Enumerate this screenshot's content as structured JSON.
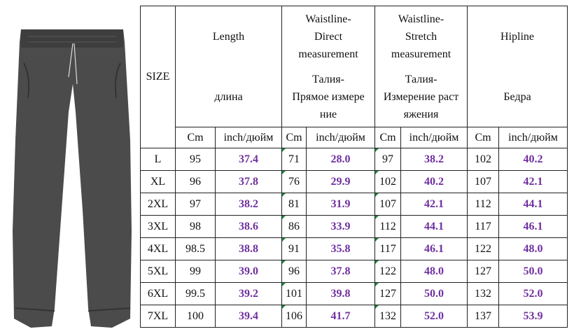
{
  "table": {
    "size_header": "SIZE",
    "groups": [
      {
        "en": [
          "Length"
        ],
        "ru": [
          "длина"
        ]
      },
      {
        "en": [
          "Waistline-",
          "Direct",
          "measurement"
        ],
        "ru": [
          "Талия-",
          "Прямое измере",
          "ние"
        ]
      },
      {
        "en": [
          "Waistline-",
          "Stretch",
          "measurement"
        ],
        "ru": [
          "Талия-",
          "Измерение раст",
          "яжения"
        ]
      },
      {
        "en": [
          "Hipline"
        ],
        "ru": [
          "Бедра"
        ]
      }
    ],
    "subheaders": [
      "Cm",
      "inch/дюйм",
      "Cm",
      "inch/дюйм",
      "Cm",
      "inch/дюйм",
      "Cm",
      "inch/дюйм"
    ],
    "rows": [
      [
        "L",
        "95",
        "37.4",
        "71",
        "28.0",
        "97",
        "38.2",
        "102",
        "40.2"
      ],
      [
        "XL",
        "96",
        "37.8",
        "76",
        "29.9",
        "102",
        "40.2",
        "107",
        "42.1"
      ],
      [
        "2XL",
        "97",
        "38.2",
        "81",
        "31.9",
        "107",
        "42.1",
        "112",
        "44.1"
      ],
      [
        "3XL",
        "98",
        "38.6",
        "86",
        "33.9",
        "112",
        "44.1",
        "117",
        "46.1"
      ],
      [
        "4XL",
        "98.5",
        "38.8",
        "91",
        "35.8",
        "117",
        "46.1",
        "122",
        "48.0"
      ],
      [
        "5XL",
        "99",
        "39.0",
        "96",
        "37.8",
        "122",
        "48.0",
        "127",
        "50.0"
      ],
      [
        "6XL",
        "99.5",
        "39.2",
        "101",
        "39.8",
        "127",
        "50.0",
        "132",
        "52.0"
      ],
      [
        "7XL",
        "100",
        "39.4",
        "106",
        "41.7",
        "132",
        "52.0",
        "137",
        "53.9"
      ]
    ]
  }
}
